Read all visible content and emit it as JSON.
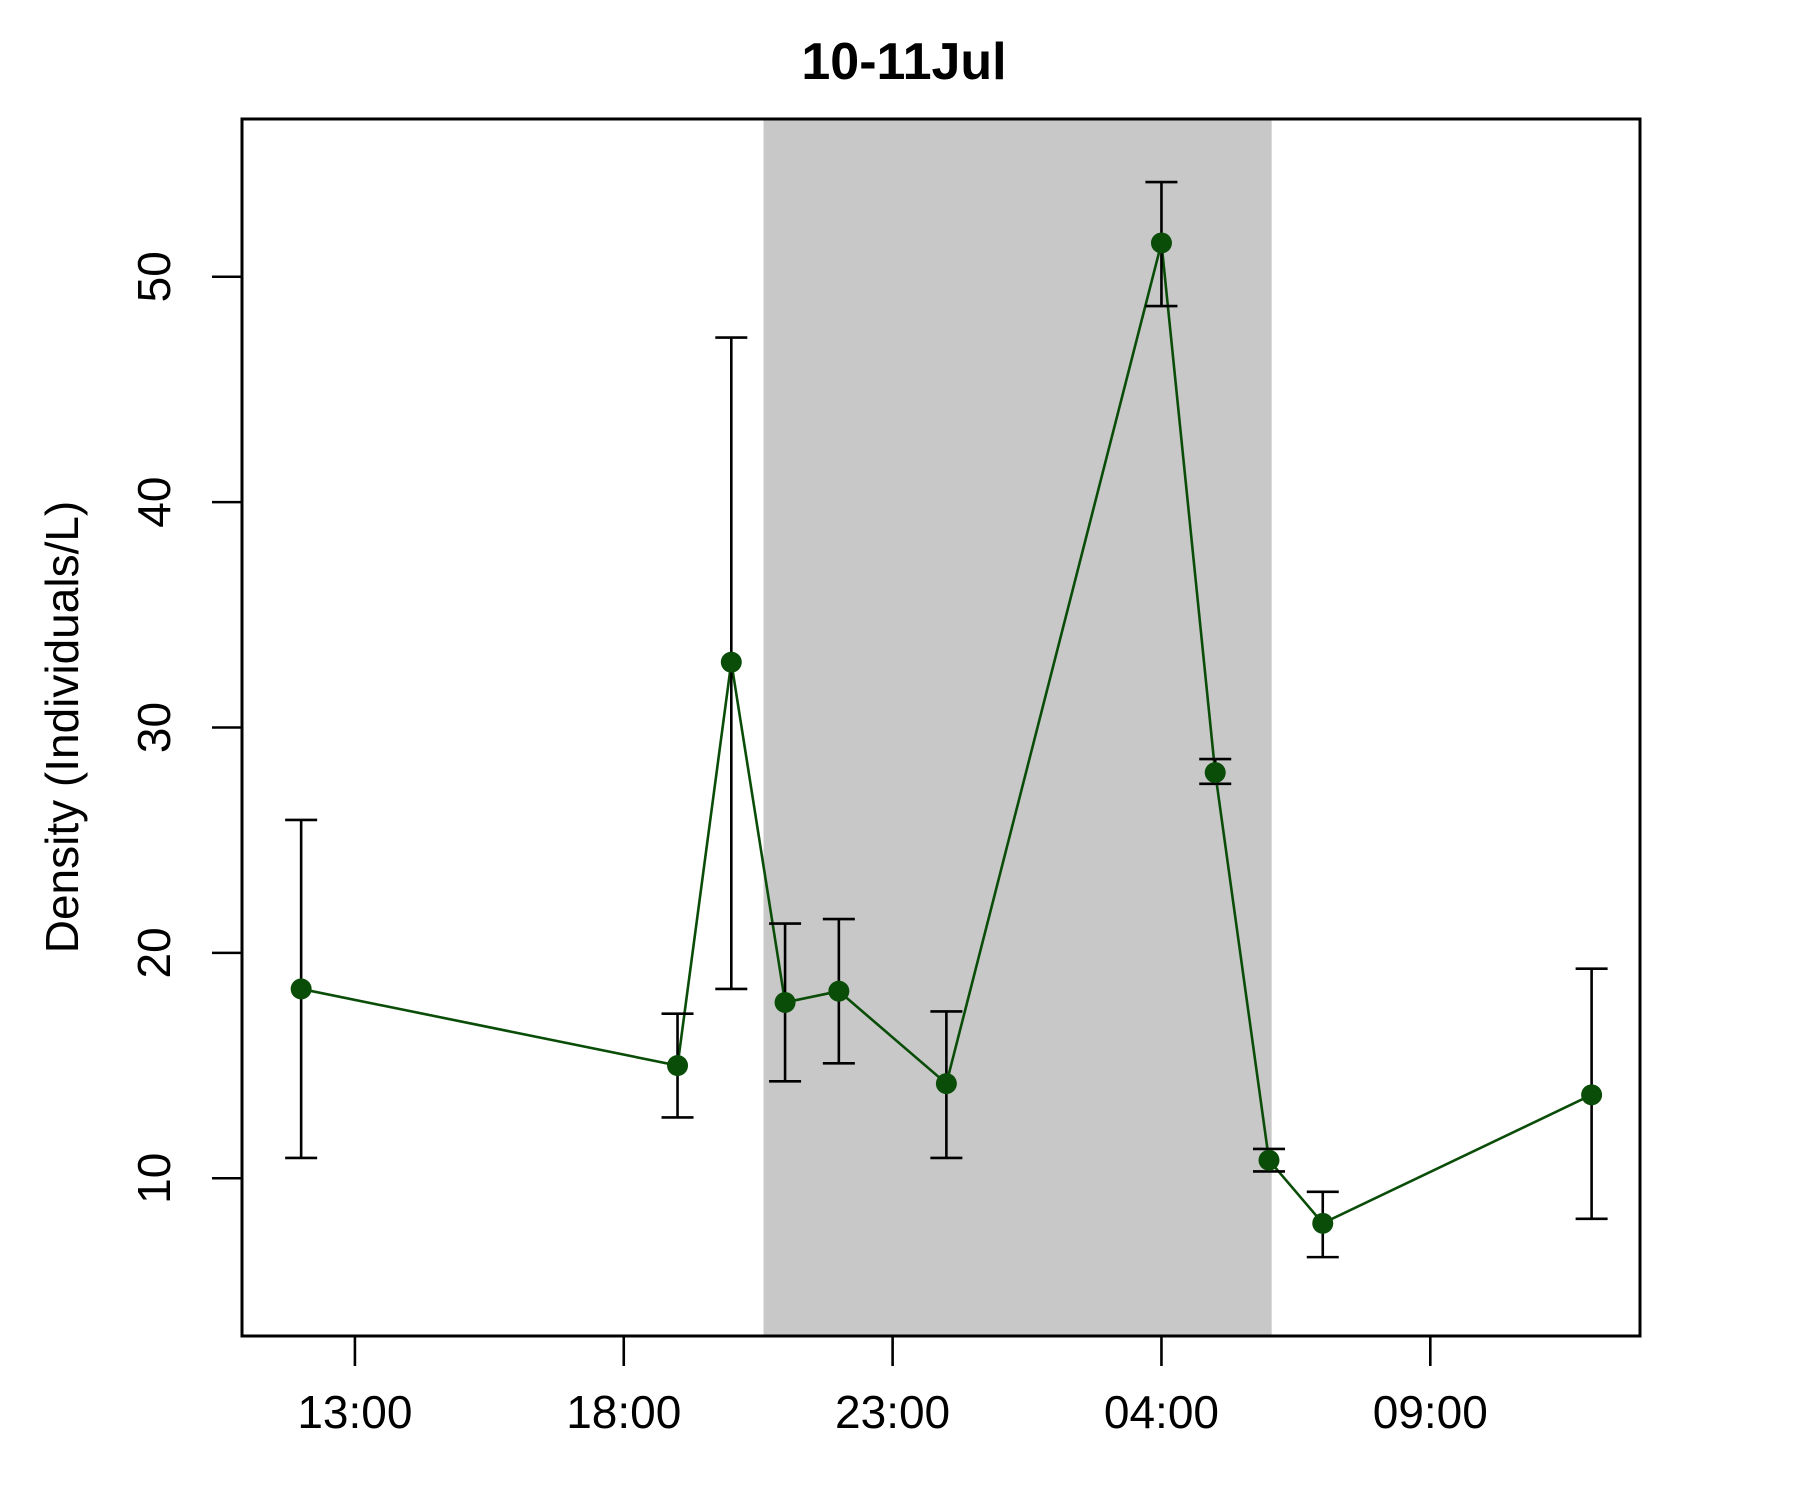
{
  "chart_data": {
    "type": "line",
    "title": "10-11Jul",
    "xlabel": "",
    "ylabel": "Density (Individuals/L)",
    "x_unit": "hours since 10 Jul 00:00",
    "xlim": [
      10.9,
      36.9
    ],
    "ylim": [
      3.0,
      57.0
    ],
    "x_ticks": [
      13,
      18,
      23,
      28,
      33
    ],
    "x_tick_labels": [
      "13:00",
      "18:00",
      "23:00",
      "04:00",
      "09:00"
    ],
    "y_ticks": [
      10,
      20,
      30,
      40,
      50
    ],
    "y_tick_labels": [
      "10",
      "20",
      "30",
      "40",
      "50"
    ],
    "grid": false,
    "night_shading": {
      "x_start": 20.6,
      "x_end": 30.05,
      "color": "#c8c8c8"
    },
    "line_color": "#0a4d08",
    "errorbar_color": "#000000",
    "series": [
      {
        "x": [
          12.0,
          19.0,
          20.0,
          21.0,
          22.0,
          24.0,
          28.0,
          29.0,
          30.0,
          31.0,
          36.0
        ],
        "y": [
          18.4,
          15.0,
          32.9,
          17.8,
          18.3,
          14.2,
          51.5,
          28.0,
          10.8,
          8.0,
          13.7
        ],
        "lower": [
          10.9,
          12.7,
          18.4,
          14.3,
          15.1,
          10.9,
          48.7,
          27.5,
          10.3,
          6.5,
          8.2
        ],
        "upper": [
          25.9,
          17.3,
          47.3,
          21.3,
          21.5,
          17.4,
          54.2,
          28.6,
          11.3,
          9.4,
          19.3
        ]
      }
    ]
  }
}
